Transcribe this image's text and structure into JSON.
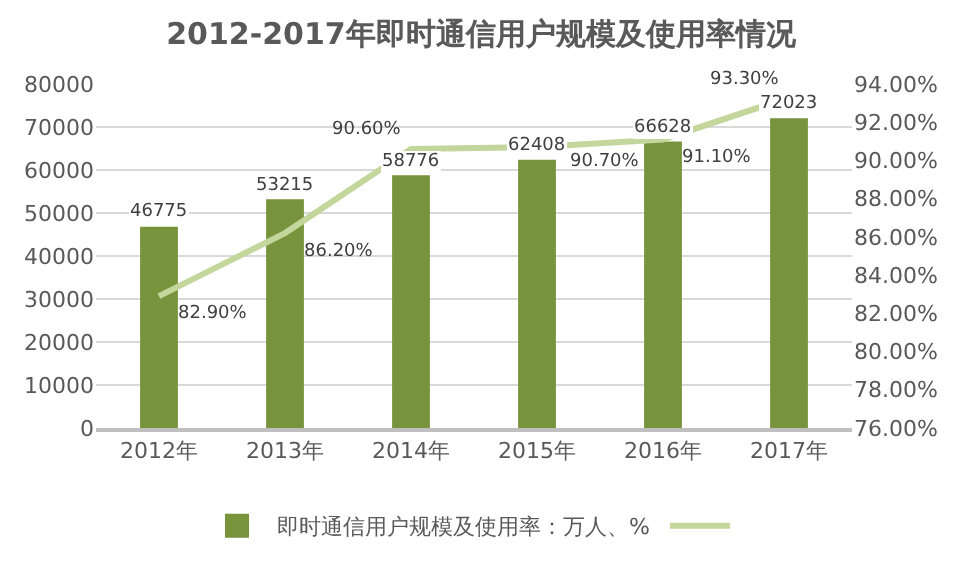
{
  "chart_data": {
    "type": "bar",
    "title": "2012-2017年即时通信用户规模及使用率情况",
    "categories": [
      "2012年",
      "2013年",
      "2014年",
      "2015年",
      "2016年",
      "2017年"
    ],
    "series": [
      {
        "name": "即时通信用户规模及使用率：万人、%",
        "color": "#77933c",
        "values": [
          46775,
          53215,
          58776,
          62408,
          66628,
          72023
        ],
        "value_labels": [
          "46775",
          "53215",
          "58776",
          "62408",
          "66628",
          "72023"
        ]
      },
      {
        "type": "line",
        "axis": "y2",
        "color": "#c3d69b",
        "values": [
          82.9,
          86.2,
          90.6,
          90.7,
          91.1,
          93.3
        ],
        "value_labels": [
          "82.90%",
          "86.20%",
          "90.60%",
          "90.70%",
          "91.10%",
          "93.30%"
        ]
      }
    ],
    "ylim": [
      0,
      80000
    ],
    "yticks": [
      0,
      10000,
      20000,
      30000,
      40000,
      50000,
      60000,
      70000,
      80000
    ],
    "y2lim": [
      76,
      94
    ],
    "y2ticks": [
      {
        "value": 76,
        "label": "76.00%"
      },
      {
        "value": 78,
        "label": "78.00%"
      },
      {
        "value": 80,
        "label": "80.00%"
      },
      {
        "value": 82,
        "label": "82.00%"
      },
      {
        "value": 84,
        "label": "84.00%"
      },
      {
        "value": 86,
        "label": "86.00%"
      },
      {
        "value": 88,
        "label": "88.00%"
      },
      {
        "value": 90,
        "label": "90.00%"
      },
      {
        "value": 92,
        "label": "92.00%"
      },
      {
        "value": 94,
        "label": "94.00%"
      }
    ],
    "grid": "y",
    "legend": "bottom",
    "marker": "none"
  }
}
